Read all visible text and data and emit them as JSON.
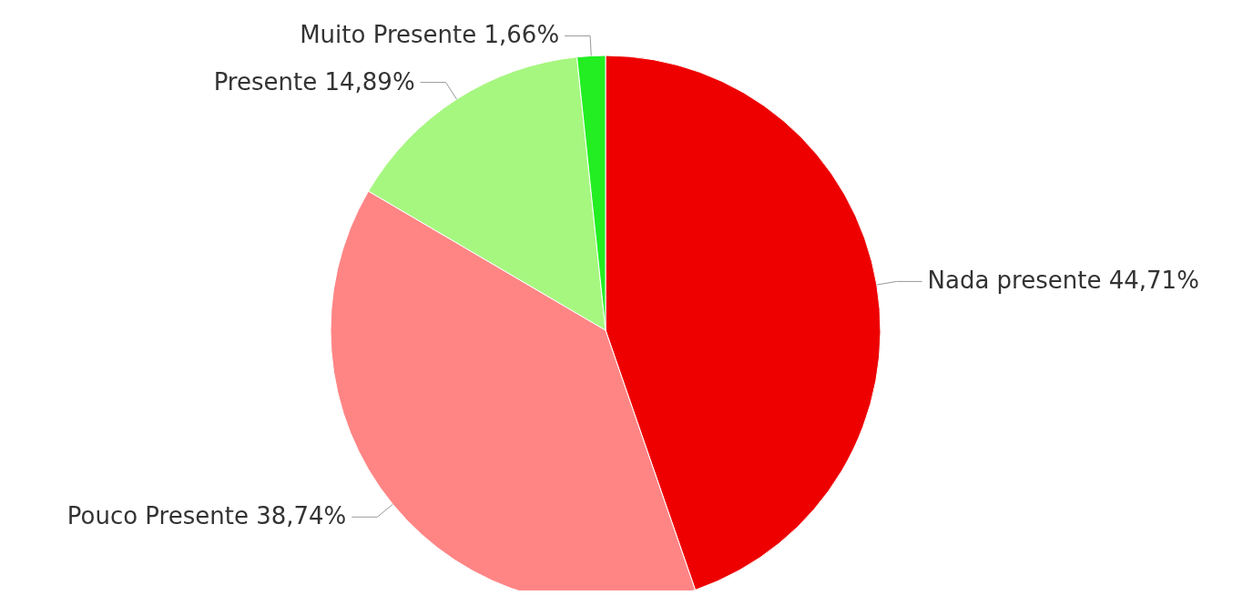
{
  "chart_data": {
    "type": "pie",
    "categories": [
      "Nada presente",
      "Pouco Presente",
      "Presente",
      "Muito Presente"
    ],
    "values": [
      44.71,
      38.74,
      14.89,
      1.66
    ],
    "value_labels": [
      "44,71%",
      "38,74%",
      "14,89%",
      "1,66%"
    ],
    "colors": [
      "#ee0000",
      "#ff8585",
      "#a6f780",
      "#22ee22"
    ]
  }
}
